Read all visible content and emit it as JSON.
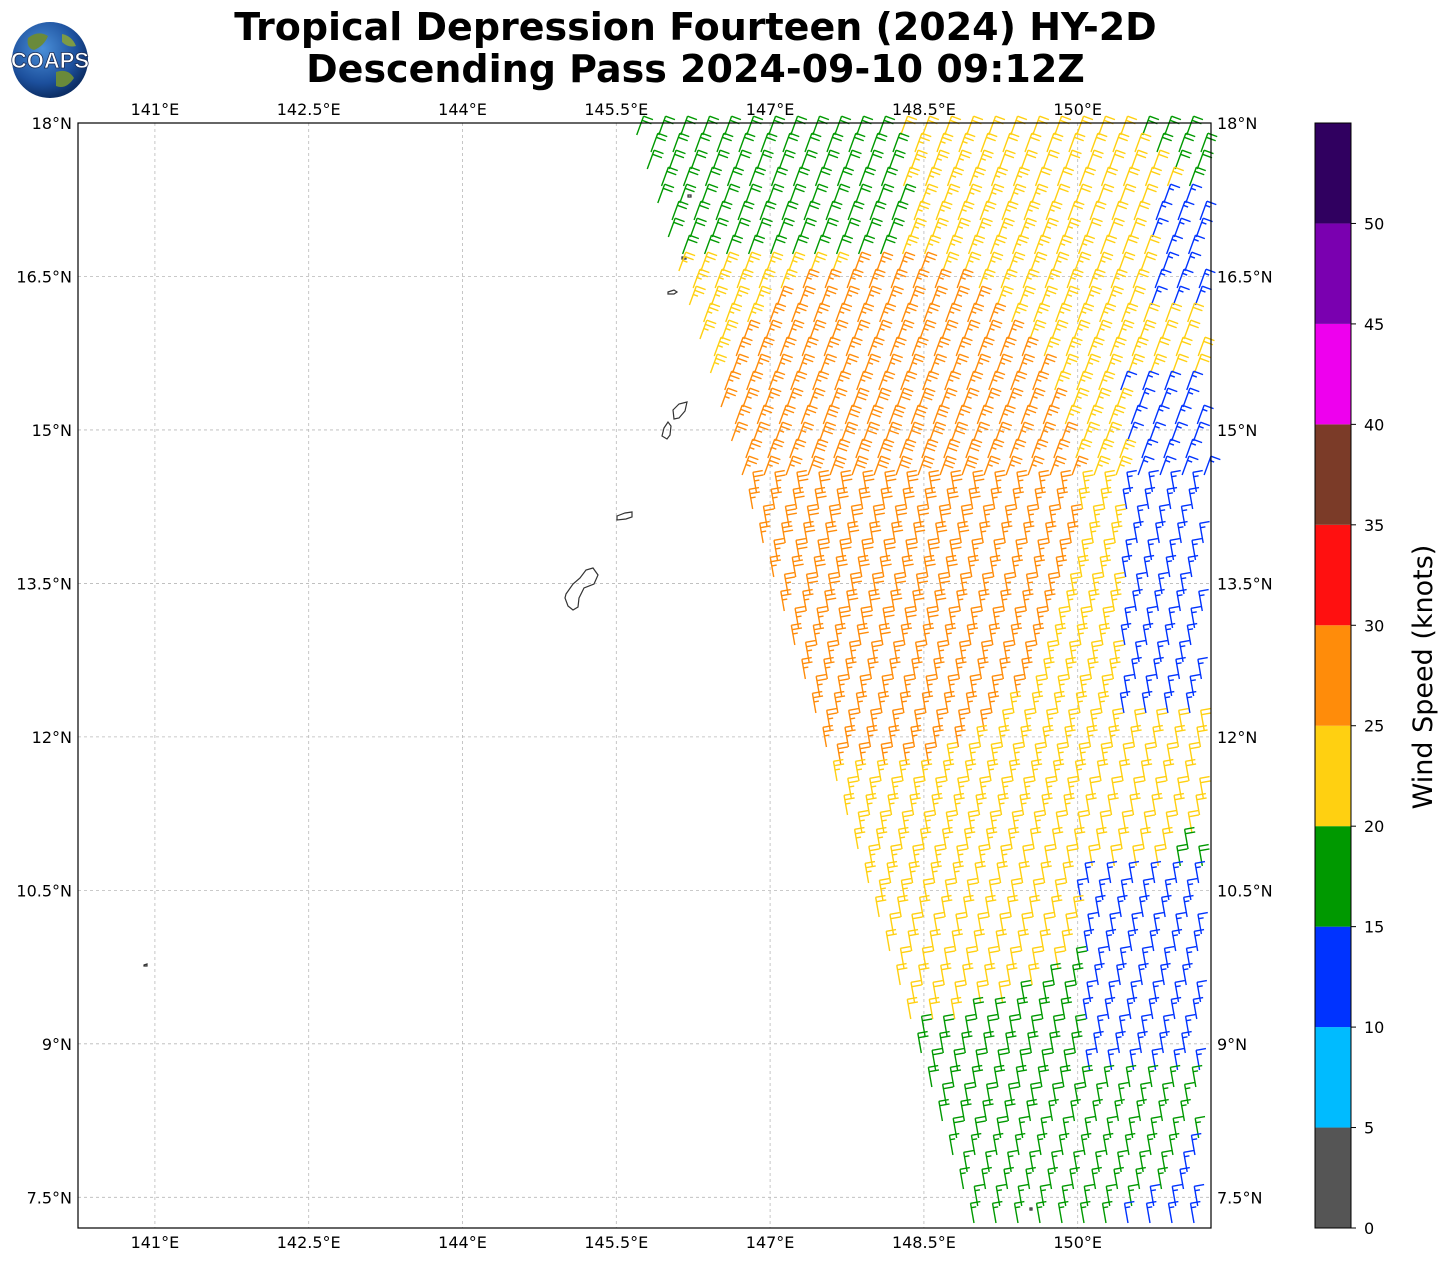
{
  "title": {
    "line1": "Tropical Depression Fourteen (2024) HY-2D",
    "line2": "Descending Pass 2024-09-10 09:12Z"
  },
  "logo": {
    "text": "COAPS",
    "icon": "globe-logo-icon"
  },
  "map": {
    "lon_range": [
      140.25,
      151.3
    ],
    "lat_range": [
      7.2,
      18.0
    ],
    "lon_ticks": [
      141,
      142.5,
      144,
      145.5,
      147,
      148.5,
      150
    ],
    "lon_tick_labels": [
      "141°E",
      "142.5°E",
      "144°E",
      "145.5°E",
      "147°E",
      "148.5°E",
      "150°E"
    ],
    "lat_ticks": [
      7.5,
      9,
      10.5,
      12,
      13.5,
      15,
      16.5,
      18
    ],
    "lat_tick_labels": [
      "7.5°N",
      "9°N",
      "10.5°N",
      "12°N",
      "13.5°N",
      "15°N",
      "16.5°N",
      "18°N"
    ],
    "gridlines": true,
    "land_color": "#333333"
  },
  "colorbar": {
    "label": "Wind Speed (knots)",
    "bounds": [
      0,
      5,
      10,
      15,
      20,
      25,
      30,
      35,
      40,
      45,
      50,
      55
    ],
    "tick_labels": [
      "0",
      "5",
      "10",
      "15",
      "20",
      "25",
      "30",
      "35",
      "40",
      "45",
      "50"
    ],
    "colors": [
      "#555555",
      "#00bbff",
      "#0033ff",
      "#009900",
      "#ffd011",
      "#ff8c0a",
      "#ff1010",
      "#7b3b28",
      "#ee00ee",
      "#7a00b0",
      "#300060"
    ]
  }
}
